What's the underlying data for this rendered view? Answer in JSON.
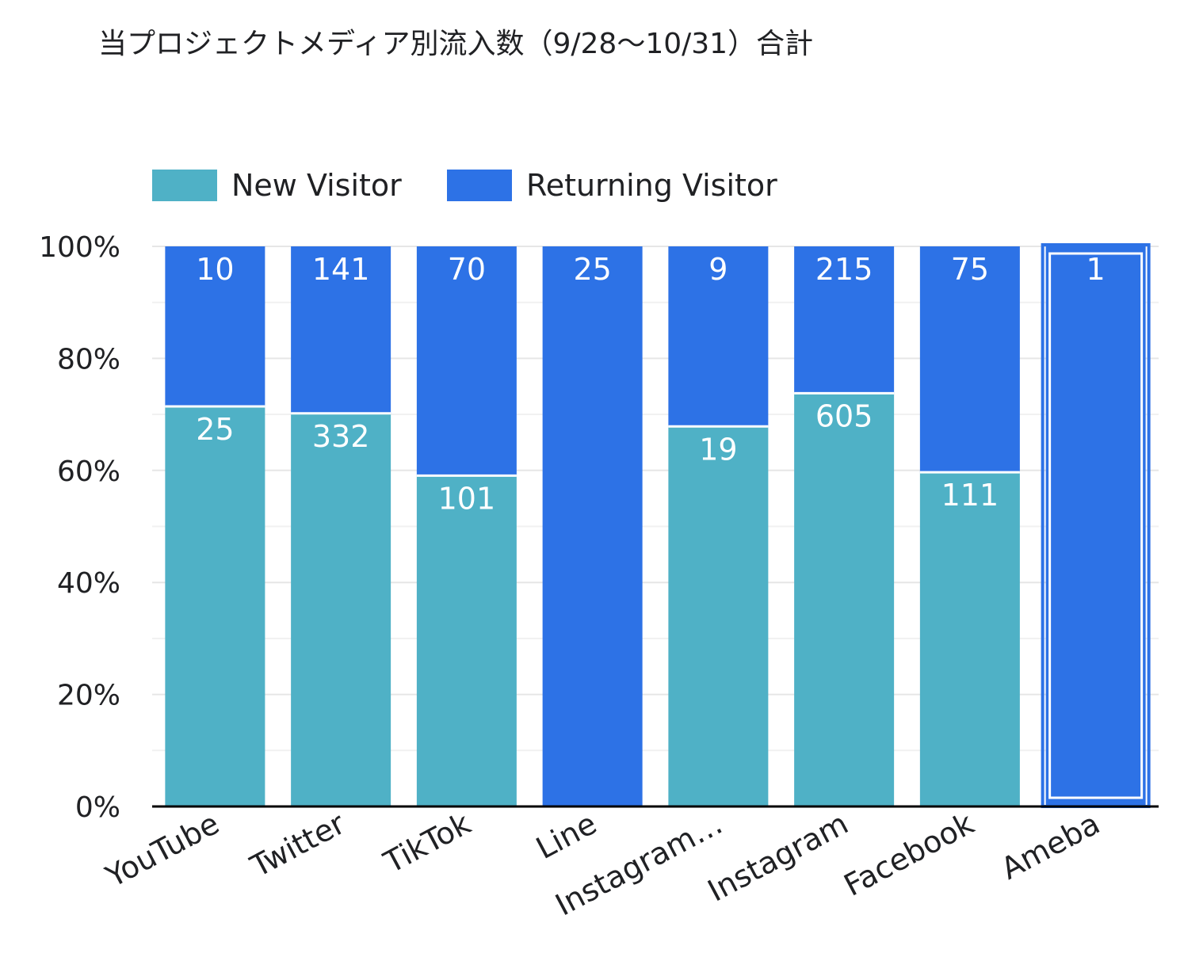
{
  "chart_data": {
    "type": "bar",
    "stacked": true,
    "normalized": true,
    "title": "当プロジェクトメディア別流入数（9/28〜10/31）合計",
    "categories": [
      "YouTube",
      "Twitter",
      "TikTok",
      "Line",
      "Instagram…",
      "Instagram",
      "Facebook",
      "Ameba"
    ],
    "series": [
      {
        "name": "New Visitor",
        "color": "#4fb1c6",
        "values": [
          25,
          332,
          101,
          0,
          19,
          605,
          111,
          0
        ]
      },
      {
        "name": "Returning Visitor",
        "color": "#2d72e6",
        "values": [
          10,
          141,
          70,
          25,
          9,
          215,
          75,
          1
        ]
      }
    ],
    "y_ticks": [
      "0%",
      "20%",
      "40%",
      "60%",
      "80%",
      "100%"
    ],
    "ylim": [
      0,
      100
    ],
    "grid": true,
    "legend_position": "top-left",
    "highlighted_category": "Ameba"
  }
}
